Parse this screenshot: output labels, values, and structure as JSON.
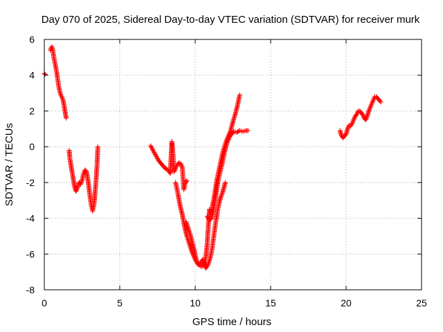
{
  "chart_data": {
    "type": "scatter",
    "title": "Day 070 of 2025, Sidereal Day-to-day VTEC variation (SDTVAR) for receiver murk",
    "xlabel": "GPS time / hours",
    "ylabel": "SDTVAR / TECUs",
    "xlim": [
      0,
      25
    ],
    "ylim": [
      -8,
      6
    ],
    "xticks": [
      0,
      5,
      10,
      15,
      20,
      25
    ],
    "yticks": [
      -8,
      -6,
      -4,
      -2,
      0,
      2,
      4,
      6
    ],
    "grid": true,
    "marker": "plus",
    "color": "#ff0000",
    "segments": [
      [
        [
          0.0,
          4.1
        ],
        [
          0.05,
          4.05
        ]
      ],
      [
        [
          0.4,
          5.4
        ],
        [
          0.5,
          5.6
        ],
        [
          0.55,
          5.5
        ],
        [
          0.65,
          4.9
        ],
        [
          0.75,
          4.5
        ],
        [
          0.85,
          4.0
        ],
        [
          0.95,
          3.4
        ],
        [
          1.05,
          3.0
        ],
        [
          1.15,
          2.8
        ],
        [
          1.25,
          2.6
        ],
        [
          1.35,
          2.1
        ],
        [
          1.45,
          1.6
        ]
      ],
      [
        [
          1.65,
          -0.2
        ],
        [
          1.7,
          -0.7
        ],
        [
          1.8,
          -1.2
        ],
        [
          1.9,
          -1.7
        ],
        [
          2.0,
          -2.2
        ],
        [
          2.1,
          -2.5
        ],
        [
          2.2,
          -2.3
        ],
        [
          2.3,
          -2.0
        ],
        [
          2.4,
          -2.1
        ],
        [
          2.5,
          -1.9
        ],
        [
          2.6,
          -1.5
        ],
        [
          2.7,
          -1.3
        ],
        [
          2.8,
          -1.4
        ],
        [
          2.9,
          -1.9
        ],
        [
          3.0,
          -2.6
        ],
        [
          3.1,
          -3.2
        ],
        [
          3.2,
          -3.6
        ],
        [
          3.3,
          -3.2
        ],
        [
          3.4,
          -2.2
        ],
        [
          3.5,
          -1.0
        ],
        [
          3.55,
          0.0
        ]
      ],
      [
        [
          7.05,
          0.05
        ],
        [
          7.2,
          -0.2
        ],
        [
          7.4,
          -0.5
        ],
        [
          7.6,
          -0.8
        ],
        [
          7.8,
          -1.0
        ],
        [
          8.0,
          -1.2
        ],
        [
          8.2,
          -1.3
        ],
        [
          8.35,
          -1.5
        ],
        [
          8.45,
          0.3
        ],
        [
          8.5,
          0.0
        ],
        [
          8.6,
          -1.4
        ],
        [
          8.75,
          -1.1
        ],
        [
          8.9,
          -0.9
        ],
        [
          9.05,
          -0.95
        ],
        [
          9.15,
          -1.2
        ],
        [
          9.2,
          -1.8
        ],
        [
          9.25,
          -2.4
        ],
        [
          9.35,
          -2.0
        ],
        [
          9.45,
          -1.9
        ]
      ],
      [
        [
          8.7,
          -2.0
        ],
        [
          8.85,
          -2.6
        ],
        [
          9.0,
          -3.3
        ],
        [
          9.15,
          -3.8
        ],
        [
          9.3,
          -4.5
        ],
        [
          9.45,
          -5.0
        ],
        [
          9.6,
          -5.4
        ],
        [
          9.75,
          -5.8
        ],
        [
          9.9,
          -6.1
        ],
        [
          10.05,
          -6.4
        ],
        [
          10.2,
          -6.6
        ],
        [
          10.35,
          -6.5
        ],
        [
          10.5,
          -6.3
        ],
        [
          10.6,
          -6.5
        ],
        [
          10.7,
          -6.8
        ],
        [
          10.85,
          -6.6
        ],
        [
          11.0,
          -6.2
        ],
        [
          11.1,
          -5.8
        ],
        [
          11.2,
          -5.2
        ],
        [
          11.3,
          -4.6
        ],
        [
          11.4,
          -4.0
        ],
        [
          11.5,
          -3.5
        ],
        [
          11.6,
          -3.1
        ],
        [
          11.7,
          -2.8
        ],
        [
          11.8,
          -2.6
        ],
        [
          11.9,
          -2.3
        ],
        [
          12.0,
          -2.0
        ]
      ],
      [
        [
          9.4,
          -4.2
        ],
        [
          9.55,
          -4.6
        ],
        [
          9.7,
          -5.0
        ],
        [
          9.85,
          -5.5
        ],
        [
          10.0,
          -6.0
        ],
        [
          10.1,
          -6.4
        ],
        [
          10.25,
          -6.6
        ],
        [
          10.4,
          -6.7
        ],
        [
          10.55,
          -6.6
        ],
        [
          10.7,
          -6.2
        ],
        [
          10.8,
          -5.4
        ],
        [
          10.9,
          -4.0
        ],
        [
          10.95,
          -3.5
        ],
        [
          11.05,
          -3.8
        ],
        [
          11.15,
          -3.3
        ],
        [
          11.3,
          -2.6
        ],
        [
          11.45,
          -1.8
        ],
        [
          11.6,
          -1.2
        ],
        [
          11.75,
          -0.6
        ],
        [
          11.9,
          -0.1
        ],
        [
          12.05,
          0.3
        ],
        [
          12.2,
          0.6
        ],
        [
          12.35,
          0.9
        ],
        [
          12.5,
          1.4
        ],
        [
          12.65,
          1.8
        ],
        [
          12.8,
          2.3
        ],
        [
          12.9,
          2.7
        ],
        [
          12.95,
          2.9
        ]
      ],
      [
        [
          10.8,
          -3.9
        ],
        [
          10.95,
          -4.1
        ],
        [
          11.1,
          -4.0
        ],
        [
          11.2,
          -3.6
        ],
        [
          11.35,
          -2.8
        ],
        [
          11.5,
          -2.0
        ],
        [
          11.65,
          -1.4
        ],
        [
          11.8,
          -0.9
        ],
        [
          11.95,
          -0.3
        ],
        [
          12.1,
          0.2
        ],
        [
          12.25,
          0.5
        ],
        [
          12.4,
          0.7
        ],
        [
          12.55,
          0.85
        ],
        [
          12.75,
          0.8
        ],
        [
          12.95,
          0.9
        ],
        [
          13.15,
          0.85
        ],
        [
          13.35,
          0.9
        ],
        [
          13.5,
          0.9
        ]
      ],
      [
        [
          19.6,
          0.9
        ],
        [
          19.7,
          0.6
        ],
        [
          19.8,
          0.5
        ],
        [
          19.9,
          0.6
        ],
        [
          20.0,
          0.7
        ],
        [
          20.1,
          1.0
        ],
        [
          20.2,
          1.2
        ],
        [
          20.3,
          1.15
        ],
        [
          20.4,
          1.3
        ],
        [
          20.5,
          1.5
        ],
        [
          20.6,
          1.7
        ],
        [
          20.7,
          1.8
        ],
        [
          20.8,
          2.0
        ],
        [
          20.9,
          2.0
        ],
        [
          21.0,
          1.9
        ],
        [
          21.1,
          1.8
        ],
        [
          21.2,
          1.6
        ],
        [
          21.3,
          1.5
        ],
        [
          21.4,
          1.7
        ],
        [
          21.5,
          2.0
        ],
        [
          21.6,
          2.2
        ],
        [
          21.7,
          2.4
        ],
        [
          21.8,
          2.6
        ],
        [
          21.9,
          2.8
        ],
        [
          22.0,
          2.8
        ],
        [
          22.1,
          2.7
        ],
        [
          22.2,
          2.6
        ],
        [
          22.3,
          2.5
        ]
      ]
    ]
  }
}
